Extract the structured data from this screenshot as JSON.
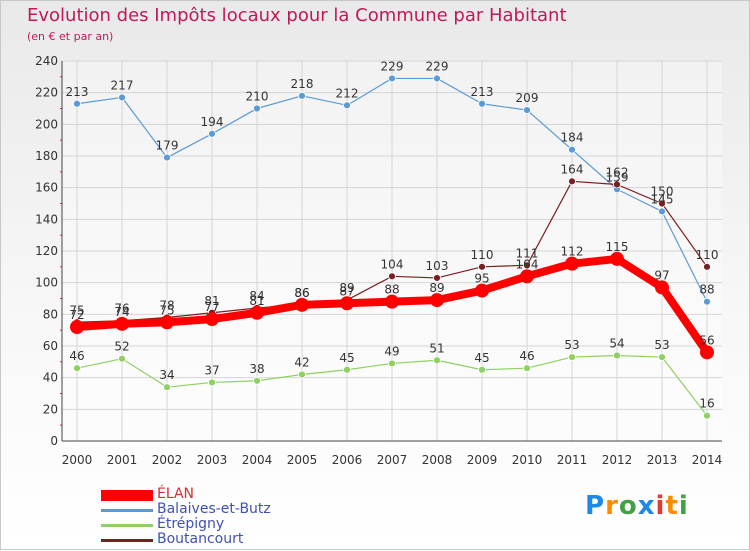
{
  "chart_data": {
    "type": "line",
    "title": "Evolution des Impôts locaux pour la Commune par Habitant",
    "subtitle": "(en € et par an)",
    "xlabel": "",
    "ylabel": "",
    "categories": [
      "2000",
      "2001",
      "2002",
      "2003",
      "2004",
      "2005",
      "2006",
      "2007",
      "2008",
      "2009",
      "2010",
      "2011",
      "2012",
      "2013",
      "2014"
    ],
    "ylim": [
      0,
      240
    ],
    "yticks": [
      0,
      20,
      40,
      60,
      80,
      100,
      120,
      140,
      160,
      180,
      200,
      220,
      240
    ],
    "grid": true,
    "legend_position": "bottom-left",
    "series": [
      {
        "name": "ÉLAN",
        "color": "#ff0000",
        "values": [
          72,
          74,
          75,
          77,
          81,
          86,
          87,
          88,
          89,
          95,
          104,
          112,
          115,
          97,
          56
        ],
        "labels": [
          "72",
          "74",
          "75",
          "77",
          "81",
          "86",
          "87",
          "88",
          "89",
          "95",
          "104",
          "112",
          "115",
          "97",
          "56"
        ],
        "emphasis": true
      },
      {
        "name": "Balaives-et-Butz",
        "color": "#5b9bd5",
        "values": [
          213,
          217,
          179,
          194,
          210,
          218,
          212,
          229,
          229,
          213,
          209,
          184,
          159,
          145,
          88
        ],
        "labels": [
          "213",
          "217",
          "179",
          "194",
          "210",
          "218",
          "212",
          "229",
          "229",
          "213",
          "209",
          "184",
          "159",
          "145",
          "88"
        ]
      },
      {
        "name": "Étrépigny",
        "color": "#8fd160",
        "values": [
          46,
          52,
          34,
          37,
          38,
          42,
          45,
          49,
          51,
          45,
          46,
          53,
          54,
          53,
          16
        ],
        "labels": [
          "46",
          "52",
          "34",
          "37",
          "38",
          "42",
          "45",
          "49",
          "51",
          "45",
          "46",
          "53",
          "54",
          "53",
          "16"
        ]
      },
      {
        "name": "Boutancourt",
        "color": "#7a1f1f",
        "values": [
          75,
          76,
          78,
          81,
          84,
          86,
          89,
          104,
          103,
          110,
          111,
          164,
          162,
          150,
          110
        ],
        "labels": [
          "75",
          "76",
          "78",
          "81",
          "84",
          "86",
          "89",
          "104",
          "103",
          "110",
          "111",
          "164",
          "162",
          "150",
          "110"
        ]
      }
    ]
  },
  "logo": {
    "text": "Proxiti",
    "letters": [
      "P",
      "r",
      "o",
      "x",
      "i",
      "t",
      "i"
    ],
    "colors": [
      "#1e88e5",
      "#fb8c00",
      "#43a047",
      "#1e88e5",
      "#e53935",
      "#fb8c00",
      "#43a047"
    ]
  }
}
